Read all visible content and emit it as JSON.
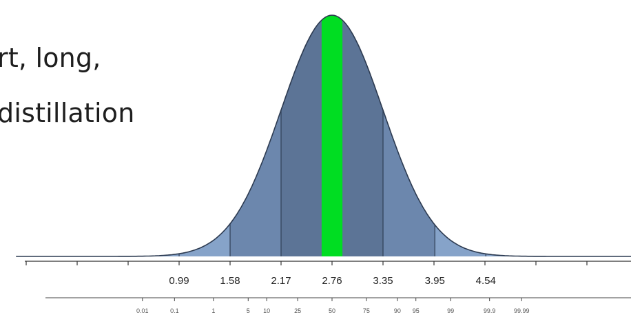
{
  "caption": {
    "line1": "rt, long,",
    "line2": "distillation"
  },
  "chart_data": {
    "type": "area",
    "description_kind": "normal-distribution",
    "colors": {
      "fill_inner": "#5c7496",
      "fill_mid": "#6c87ad",
      "fill_outer": "#86a3c9",
      "highlight": "#00dd22",
      "outline": "#2c3a50"
    },
    "mean": 2.76,
    "sd": 0.59,
    "highlight_band": [
      2.64,
      2.88
    ],
    "sigma_boundaries": [
      -0.78,
      -0.19,
      0.99,
      1.58,
      2.17,
      3.35,
      3.95,
      4.54,
      5.13,
      5.72
    ],
    "x_tick_labels": [
      "0.99",
      "1.58",
      "2.17",
      "2.76",
      "3.35",
      "3.95",
      "4.54"
    ],
    "x_tick_values": [
      0.99,
      1.58,
      2.17,
      2.76,
      3.35,
      3.95,
      4.54
    ],
    "percentile_labels": [
      "0.01",
      "0.1",
      "1",
      "5",
      "10",
      "25",
      "50",
      "75",
      "90",
      "95",
      "99",
      "99.9",
      "99.99"
    ],
    "percentile_values": [
      0.01,
      0.1,
      1,
      5,
      10,
      25,
      50,
      75,
      90,
      95,
      99,
      99.9,
      99.99
    ]
  }
}
